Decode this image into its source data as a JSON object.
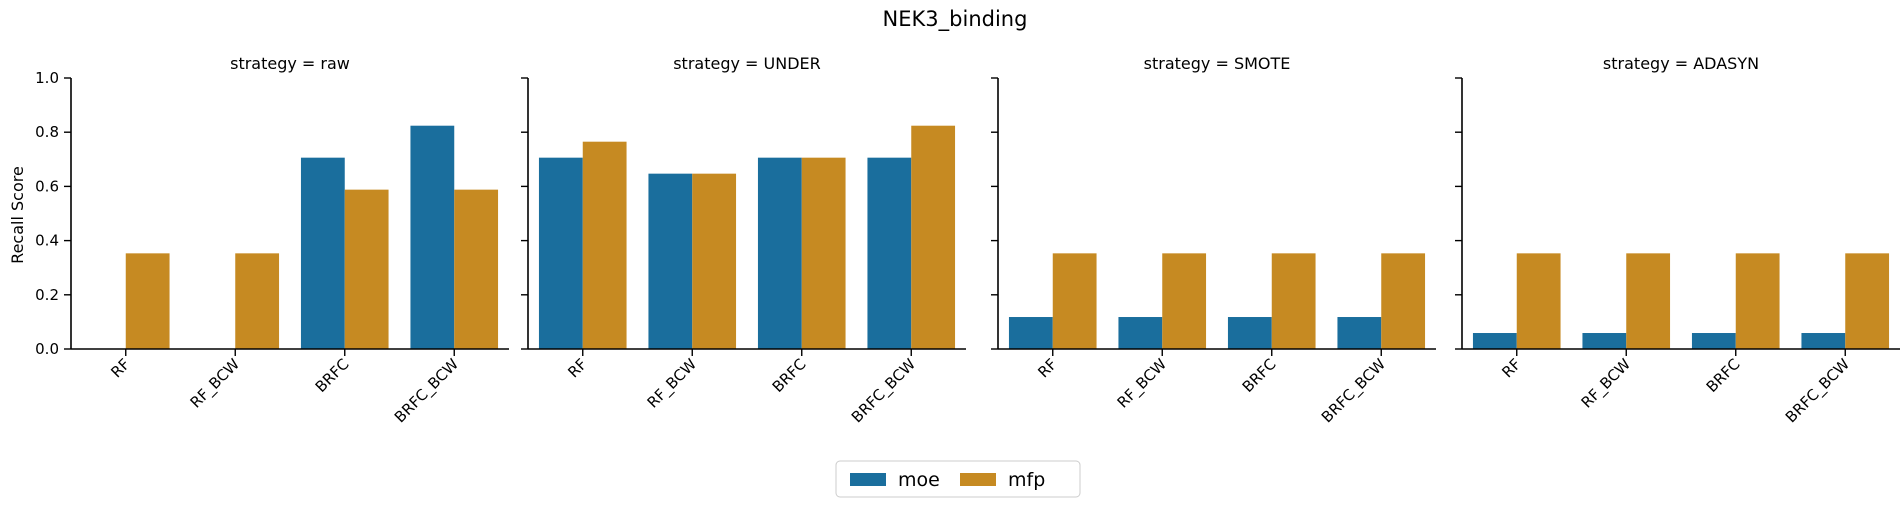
{
  "chart_data": {
    "type": "bar",
    "title": "NEK3_binding",
    "ylabel": "Recall Score",
    "xlabel": "",
    "ylim": [
      0,
      1.0
    ],
    "yticks": [
      0.0,
      0.2,
      0.4,
      0.6,
      0.8,
      1.0
    ],
    "ytick_labels": [
      "0.0",
      "0.2",
      "0.4",
      "0.6",
      "0.8",
      "1.0"
    ],
    "categories": [
      "RF",
      "RF_BCW",
      "BRFC",
      "BRFC_BCW"
    ],
    "series_names": [
      "moe",
      "mfp"
    ],
    "series_colors": [
      "#1a6e9d",
      "#c68a22"
    ],
    "grid": false,
    "legend_position": "bottom-center",
    "panels": [
      {
        "title": "strategy = raw",
        "series": [
          {
            "name": "moe",
            "values": [
              0.0,
              0.0,
              0.706,
              0.824
            ]
          },
          {
            "name": "mfp",
            "values": [
              0.353,
              0.353,
              0.588,
              0.588
            ]
          }
        ]
      },
      {
        "title": "strategy = UNDER",
        "series": [
          {
            "name": "moe",
            "values": [
              0.706,
              0.647,
              0.706,
              0.706
            ]
          },
          {
            "name": "mfp",
            "values": [
              0.765,
              0.647,
              0.706,
              0.824
            ]
          }
        ]
      },
      {
        "title": "strategy = SMOTE",
        "series": [
          {
            "name": "moe",
            "values": [
              0.118,
              0.118,
              0.118,
              0.118
            ]
          },
          {
            "name": "mfp",
            "values": [
              0.353,
              0.353,
              0.353,
              0.353
            ]
          }
        ]
      },
      {
        "title": "strategy = ADASYN",
        "series": [
          {
            "name": "moe",
            "values": [
              0.059,
              0.059,
              0.059,
              0.059
            ]
          },
          {
            "name": "mfp",
            "values": [
              0.353,
              0.353,
              0.353,
              0.353
            ]
          }
        ]
      }
    ]
  }
}
